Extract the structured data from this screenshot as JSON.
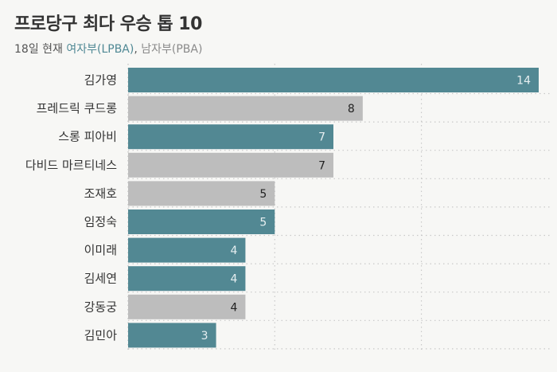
{
  "header": {
    "title": "프로당구 최다 우승 톱 10",
    "subtitle_prefix": "18일 현재 ",
    "legend_lpba": "여자부(LPBA)",
    "legend_sep": ", ",
    "legend_pba": "남자부(PBA)"
  },
  "colors": {
    "lpba": "#528893",
    "pba": "#bdbdbd",
    "label_on_lpba": "#e6eef0",
    "label_on_pba": "#222222"
  },
  "chart_data": {
    "type": "bar",
    "orientation": "horizontal",
    "categories": [
      "김가영",
      "프레드릭 쿠드롱",
      "스롱 피아비",
      "다비드 마르티네스",
      "조재호",
      "임정숙",
      "이미래",
      "김세연",
      "강동궁",
      "김민아"
    ],
    "values": [
      14,
      8,
      7,
      7,
      5,
      5,
      4,
      4,
      4,
      3
    ],
    "groups": [
      "LPBA",
      "PBA",
      "LPBA",
      "PBA",
      "PBA",
      "LPBA",
      "LPBA",
      "LPBA",
      "PBA",
      "LPBA"
    ],
    "legend": [
      "여자부(LPBA)",
      "남자부(PBA)"
    ],
    "xlim": [
      0,
      14
    ],
    "grid": true,
    "data_labels": true
  }
}
